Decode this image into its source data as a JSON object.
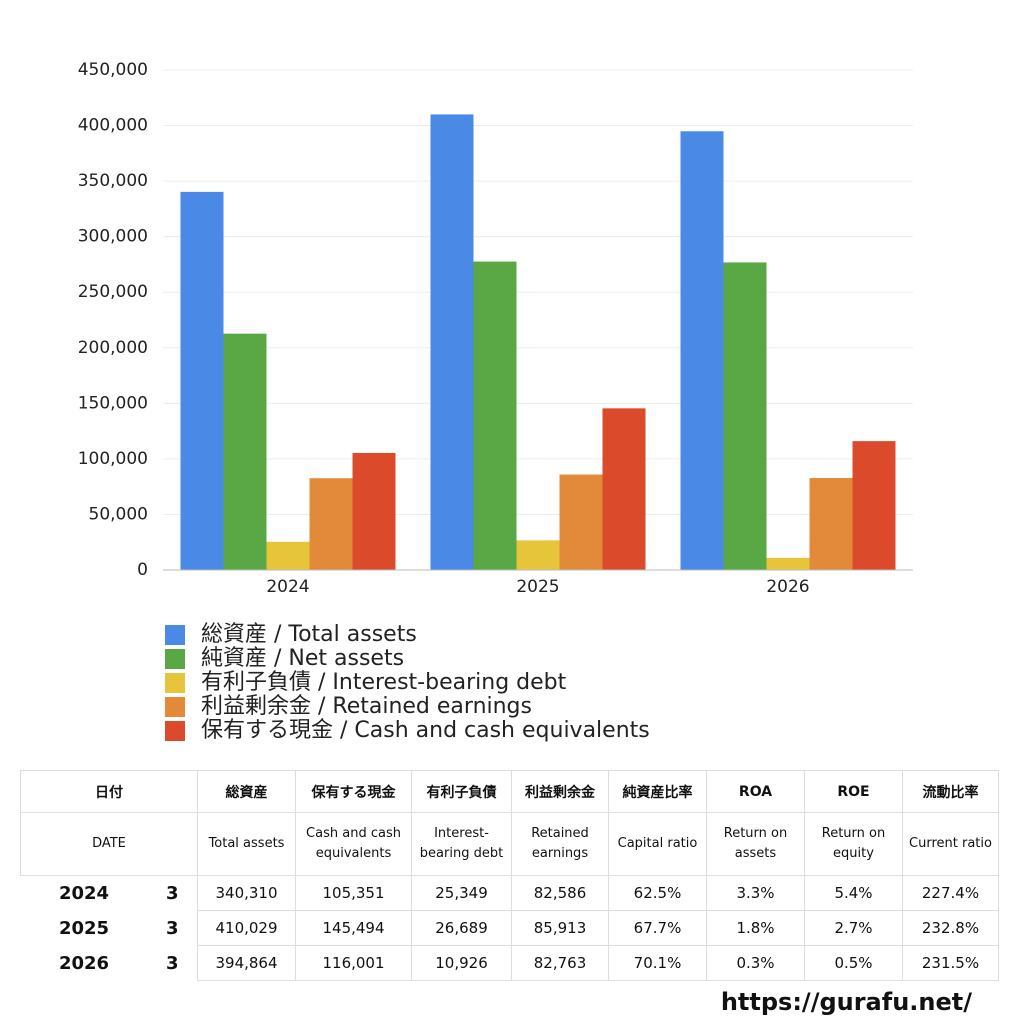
{
  "chart_data": {
    "type": "bar",
    "categories": [
      "2024",
      "2025",
      "2026"
    ],
    "series": [
      {
        "name": "総資産 / Total assets",
        "color": "#4a8ae6",
        "values": [
          340310,
          410029,
          394864
        ]
      },
      {
        "name": "純資産 / Net assets",
        "color": "#5aa845",
        "values": [
          212700,
          277600,
          276800
        ]
      },
      {
        "name": "有利子負債 / Interest-bearing debt",
        "color": "#e6c53a",
        "values": [
          25349,
          26689,
          10926
        ]
      },
      {
        "name": "利益剰余金 / Retained earnings",
        "color": "#e28a3a",
        "values": [
          82586,
          85913,
          82763
        ]
      },
      {
        "name": "保有する現金 /  Cash and cash equivalents",
        "color": "#dc4a2c",
        "values": [
          105351,
          145494,
          116001
        ]
      }
    ],
    "ylim": [
      0,
      450000
    ],
    "yticks": [
      0,
      {
        "value": 50000,
        "label": "50,000"
      },
      {
        "value": 100000,
        "label": "100,000"
      },
      {
        "value": 150000,
        "label": "150,000"
      },
      {
        "value": 200000,
        "label": "200,000"
      },
      {
        "value": 250000,
        "label": "250,000"
      },
      {
        "value": 300000,
        "label": "300,000"
      },
      {
        "value": 350000,
        "label": "350,000"
      },
      {
        "value": 400000,
        "label": "400,000"
      },
      {
        "value": 450000,
        "label": "450,000"
      }
    ],
    "grid": true
  },
  "table": {
    "header": [
      "日付",
      "総資産",
      "保有する現金",
      "有利子負債",
      "利益剰余金",
      "純資産比率",
      "ROA",
      "ROE",
      "流動比率"
    ],
    "subheader": [
      "DATE",
      "Total assets",
      "Cash and cash equivalents",
      "Interest-bearing debt",
      "Retained earnings",
      "Capital ratio",
      "Return on assets",
      "Return on equity",
      "Current ratio"
    ],
    "rows": [
      [
        "2024",
        "3",
        "340,310",
        "105,351",
        "25,349",
        "82,586",
        "62.5%",
        "3.3%",
        "5.4%",
        "227.4%"
      ],
      [
        "2025",
        "3",
        "410,029",
        "145,494",
        "26,689",
        "85,913",
        "67.7%",
        "1.8%",
        "2.7%",
        "232.8%"
      ],
      [
        "2026",
        "3",
        "394,864",
        "116,001",
        "10,926",
        "82,763",
        "70.1%",
        "0.3%",
        "0.5%",
        "231.5%"
      ]
    ]
  },
  "footer": {
    "url": "https://gurafu.net/"
  }
}
